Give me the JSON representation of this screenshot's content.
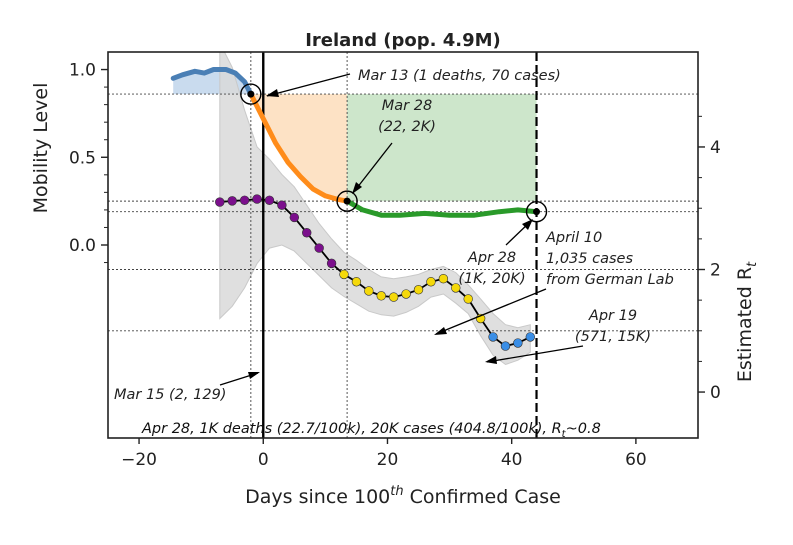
{
  "chart_data": {
    "type": "line",
    "title": "Ireland (pop. 4.9M)",
    "xlabel_main": "Days since 100",
    "xlabel_sup": "th",
    "xlabel_tail": " Confirmed Case",
    "ylabel_left": "Mobility Level",
    "ylabel_right_main": "Estimated R",
    "ylabel_right_sub": "t",
    "xlim": [
      -25,
      70
    ],
    "x_ticks": [
      -20,
      0,
      20,
      40,
      60
    ],
    "x_tick_labels": [
      "−20",
      "0",
      "20",
      "40",
      "60"
    ],
    "left_ylim": [
      -1.1,
      1.1
    ],
    "left_ticks": [
      0.0,
      0.5,
      1.0
    ],
    "left_tick_labels": [
      "0.0",
      "0.5",
      "1.0"
    ],
    "right_ylim": [
      -0.75,
      5.55
    ],
    "right_ticks": [
      0,
      2,
      4
    ],
    "right_tick_labels": [
      "0",
      "2",
      "4"
    ],
    "colors": {
      "mobility_pre": "#4a7fb5",
      "mobility_decline": "#ff8c1a",
      "mobility_post": "#2a9a2a",
      "fill_pre": "#c9dbee",
      "fill_decline": "#fde0c2",
      "fill_post": "#cde6cb",
      "rt_band": "#d9d9d9",
      "rt_high": "#7b0f8c",
      "rt_mid": "#f5d90a",
      "rt_low": "#3a8ee6"
    },
    "mobility_series": {
      "name": "Mobility Level",
      "pre": [
        [
          -14.5,
          0.95
        ],
        [
          -13,
          0.97
        ],
        [
          -11,
          0.99
        ],
        [
          -9.5,
          0.98
        ],
        [
          -8,
          1.0
        ],
        [
          -6,
          1.0
        ],
        [
          -4.5,
          0.98
        ],
        [
          -3,
          0.93
        ],
        [
          -2,
          0.86
        ]
      ],
      "decline": [
        [
          -2,
          0.86
        ],
        [
          0,
          0.72
        ],
        [
          2,
          0.58
        ],
        [
          4,
          0.47
        ],
        [
          6,
          0.39
        ],
        [
          8,
          0.32
        ],
        [
          10,
          0.28
        ],
        [
          12,
          0.26
        ],
        [
          13.5,
          0.25
        ]
      ],
      "post": [
        [
          13.5,
          0.25
        ],
        [
          16,
          0.2
        ],
        [
          19,
          0.17
        ],
        [
          22,
          0.17
        ],
        [
          26,
          0.18
        ],
        [
          30,
          0.17
        ],
        [
          34,
          0.17
        ],
        [
          38,
          0.19
        ],
        [
          41,
          0.2
        ],
        [
          44,
          0.19
        ]
      ]
    },
    "reference_levels": [
      0.86,
      0.25,
      0.19
    ],
    "reference_days": [
      -2,
      13.5,
      44
    ],
    "rt_series": {
      "name": "Estimated Rt",
      "x": [
        -7,
        -5,
        -3,
        -1,
        1,
        3,
        5,
        7,
        9,
        11,
        13,
        15,
        17,
        19,
        21,
        23,
        25,
        27,
        29,
        31,
        33,
        35,
        37,
        39,
        41,
        43
      ],
      "y": [
        3.1,
        3.12,
        3.13,
        3.15,
        3.13,
        3.05,
        2.85,
        2.6,
        2.35,
        2.1,
        1.92,
        1.8,
        1.65,
        1.57,
        1.55,
        1.6,
        1.67,
        1.8,
        1.85,
        1.7,
        1.52,
        1.2,
        0.9,
        0.75,
        0.8,
        0.9
      ],
      "band_upper": [
        5.7,
        5.3,
        4.6,
        4.0,
        3.8,
        3.55,
        3.35,
        3.05,
        2.75,
        2.5,
        2.28,
        2.15,
        2.0,
        1.88,
        1.85,
        1.88,
        1.92,
        2.0,
        2.05,
        1.95,
        1.75,
        1.52,
        1.28,
        1.1,
        1.05,
        1.1
      ],
      "band_lower": [
        1.2,
        1.4,
        1.7,
        2.1,
        2.35,
        2.4,
        2.3,
        2.1,
        1.9,
        1.7,
        1.56,
        1.44,
        1.32,
        1.26,
        1.24,
        1.3,
        1.4,
        1.55,
        1.6,
        1.45,
        1.28,
        0.92,
        0.6,
        0.45,
        0.52,
        0.65
      ]
    },
    "rt_reference_levels": [
      2.0,
      1.0
    ],
    "annotations": {
      "mar13": "Mar 13 (1 deaths, 70 cases)",
      "mar28_line1": "Mar 28",
      "mar28_line2": "(22, 2K)",
      "apr28_line1": "Apr 28",
      "apr28_line2": "(1K, 20K)",
      "apr10_line1": "April 10",
      "apr10_line2": "1,035 cases",
      "apr10_line3": "from German Lab",
      "apr19_line1": "Apr 19",
      "apr19_line2": "(571, 15K)",
      "mar15": "Mar 15 (2, 129)"
    },
    "footer_main": "Apr 28, 1K deaths (22.7/100k),  20K cases (404.8/100k), R",
    "footer_sub": "t",
    "footer_tail": "~0.8"
  }
}
